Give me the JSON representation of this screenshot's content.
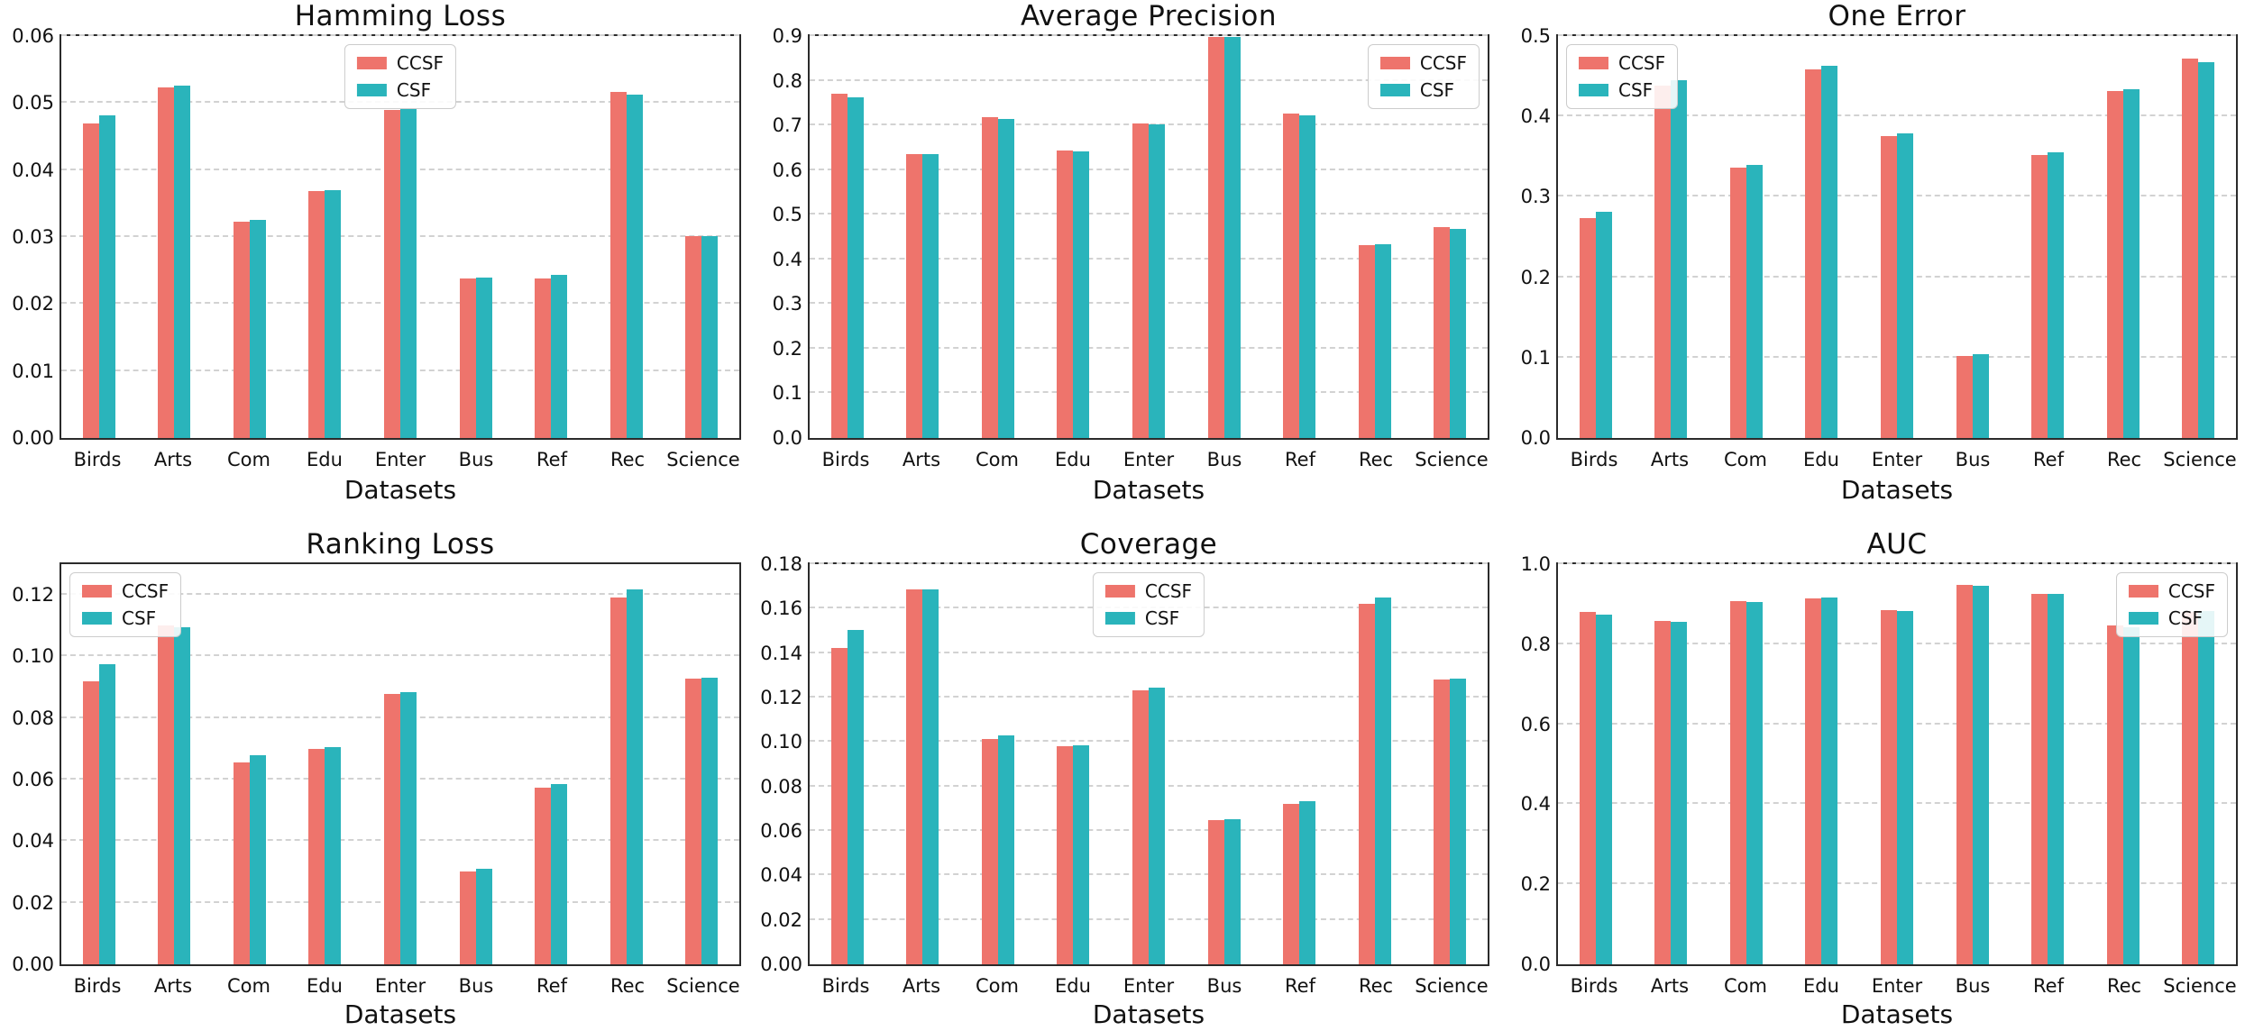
{
  "figure": {
    "x_axis_label": "Datasets",
    "series_colors": {
      "CCSF": "#EE746C",
      "CSF": "#2AB4BB"
    },
    "grid_style": "horizontal-dashed",
    "layout": "2 rows x 3 columns of grouped bar charts"
  },
  "chart_data": [
    {
      "type": "bar",
      "title": "Hamming Loss",
      "xlabel": "Datasets",
      "ylabel": "",
      "ylim": [
        0,
        0.06
      ],
      "yticks": [
        0,
        0.01,
        0.02,
        0.03,
        0.04,
        0.05,
        0.06
      ],
      "ytick_labels": [
        "0.00",
        "0.01",
        "0.02",
        "0.03",
        "0.04",
        "0.05",
        "0.06"
      ],
      "categories": [
        "Birds",
        "Arts",
        "Com",
        "Edu",
        "Enter",
        "Bus",
        "Ref",
        "Rec",
        "Science"
      ],
      "series": [
        {
          "name": "CCSF",
          "color": "#EE746C",
          "values": [
            0.0469,
            0.0523,
            0.0323,
            0.0368,
            0.049,
            0.0238,
            0.0238,
            0.0517,
            0.0302
          ]
        },
        {
          "name": "CSF",
          "color": "#2AB4BB",
          "values": [
            0.0481,
            0.0526,
            0.0326,
            0.037,
            0.0493,
            0.024,
            0.0243,
            0.0513,
            0.0302
          ]
        }
      ],
      "legend_position": "upper-center",
      "grid": true
    },
    {
      "type": "bar",
      "title": "Average Precision",
      "xlabel": "Datasets",
      "ylabel": "",
      "ylim": [
        0,
        0.9
      ],
      "yticks": [
        0,
        0.1,
        0.2,
        0.3,
        0.4,
        0.5,
        0.6,
        0.7,
        0.8,
        0.9
      ],
      "ytick_labels": [
        "0.0",
        "0.1",
        "0.2",
        "0.3",
        "0.4",
        "0.5",
        "0.6",
        "0.7",
        "0.8",
        "0.9"
      ],
      "categories": [
        "Birds",
        "Arts",
        "Com",
        "Edu",
        "Enter",
        "Bus",
        "Ref",
        "Rec",
        "Science"
      ],
      "series": [
        {
          "name": "CCSF",
          "color": "#EE746C",
          "values": [
            0.77,
            0.636,
            0.719,
            0.644,
            0.705,
            0.899,
            0.726,
            0.431,
            0.473
          ]
        },
        {
          "name": "CSF",
          "color": "#2AB4BB",
          "values": [
            0.763,
            0.635,
            0.715,
            0.642,
            0.702,
            0.898,
            0.722,
            0.434,
            0.469
          ]
        }
      ],
      "legend_position": "upper-right",
      "grid": true
    },
    {
      "type": "bar",
      "title": "One Error",
      "xlabel": "Datasets",
      "ylabel": "",
      "ylim": [
        0,
        0.5
      ],
      "yticks": [
        0,
        0.1,
        0.2,
        0.3,
        0.4,
        0.5
      ],
      "ytick_labels": [
        "0.0",
        "0.1",
        "0.2",
        "0.3",
        "0.4",
        "0.5"
      ],
      "categories": [
        "Birds",
        "Arts",
        "Com",
        "Edu",
        "Enter",
        "Bus",
        "Ref",
        "Rec",
        "Science"
      ],
      "series": [
        {
          "name": "CCSF",
          "color": "#EE746C",
          "values": [
            0.274,
            0.438,
            0.336,
            0.459,
            0.376,
            0.102,
            0.352,
            0.432,
            0.472
          ]
        },
        {
          "name": "CSF",
          "color": "#2AB4BB",
          "values": [
            0.281,
            0.445,
            0.34,
            0.463,
            0.379,
            0.104,
            0.355,
            0.434,
            0.468
          ]
        }
      ],
      "legend_position": "upper-left",
      "grid": true
    },
    {
      "type": "bar",
      "title": "Ranking Loss",
      "xlabel": "Datasets",
      "ylabel": "",
      "ylim": [
        0,
        0.13
      ],
      "yticks": [
        0,
        0.02,
        0.04,
        0.06,
        0.08,
        0.1,
        0.12
      ],
      "ytick_labels": [
        "0.00",
        "0.02",
        "0.04",
        "0.06",
        "0.08",
        "0.10",
        "0.12"
      ],
      "categories": [
        "Birds",
        "Arts",
        "Com",
        "Edu",
        "Enter",
        "Bus",
        "Ref",
        "Rec",
        "Science"
      ],
      "series": [
        {
          "name": "CCSF",
          "color": "#EE746C",
          "values": [
            0.092,
            0.11,
            0.0655,
            0.07,
            0.0877,
            0.0303,
            0.0574,
            0.1193,
            0.0928
          ]
        },
        {
          "name": "CSF",
          "color": "#2AB4BB",
          "values": [
            0.0975,
            0.1095,
            0.0678,
            0.0707,
            0.0883,
            0.031,
            0.0587,
            0.1217,
            0.093
          ]
        }
      ],
      "legend_position": "upper-left",
      "grid": true
    },
    {
      "type": "bar",
      "title": "Coverage",
      "xlabel": "Datasets",
      "ylabel": "",
      "ylim": [
        0,
        0.18
      ],
      "yticks": [
        0,
        0.02,
        0.04,
        0.06,
        0.08,
        0.1,
        0.12,
        0.14,
        0.16,
        0.18
      ],
      "ytick_labels": [
        "0.00",
        "0.02",
        "0.04",
        "0.06",
        "0.08",
        "0.10",
        "0.12",
        "0.14",
        "0.16",
        "0.18"
      ],
      "categories": [
        "Birds",
        "Arts",
        "Com",
        "Edu",
        "Enter",
        "Bus",
        "Ref",
        "Rec",
        "Science"
      ],
      "series": [
        {
          "name": "CCSF",
          "color": "#EE746C",
          "values": [
            0.1425,
            0.1685,
            0.1015,
            0.098,
            0.1233,
            0.0648,
            0.072,
            0.162,
            0.128
          ]
        },
        {
          "name": "CSF",
          "color": "#2AB4BB",
          "values": [
            0.1503,
            0.1688,
            0.103,
            0.0986,
            0.1244,
            0.0652,
            0.0732,
            0.165,
            0.1287
          ]
        }
      ],
      "legend_position": "upper-center",
      "grid": true
    },
    {
      "type": "bar",
      "title": "AUC",
      "xlabel": "Datasets",
      "ylabel": "",
      "ylim": [
        0,
        1.0
      ],
      "yticks": [
        0,
        0.2,
        0.4,
        0.6,
        0.8,
        1.0
      ],
      "ytick_labels": [
        "0.0",
        "0.2",
        "0.4",
        "0.6",
        "0.8",
        "1.0"
      ],
      "categories": [
        "Birds",
        "Arts",
        "Com",
        "Edu",
        "Enter",
        "Bus",
        "Ref",
        "Rec",
        "Science"
      ],
      "series": [
        {
          "name": "CCSF",
          "color": "#EE746C",
          "values": [
            0.88,
            0.858,
            0.908,
            0.915,
            0.886,
            0.948,
            0.925,
            0.846,
            0.88
          ]
        },
        {
          "name": "CSF",
          "color": "#2AB4BB",
          "values": [
            0.873,
            0.857,
            0.905,
            0.916,
            0.884,
            0.947,
            0.925,
            0.843,
            0.882
          ]
        }
      ],
      "legend_position": "upper-right",
      "grid": true
    }
  ]
}
